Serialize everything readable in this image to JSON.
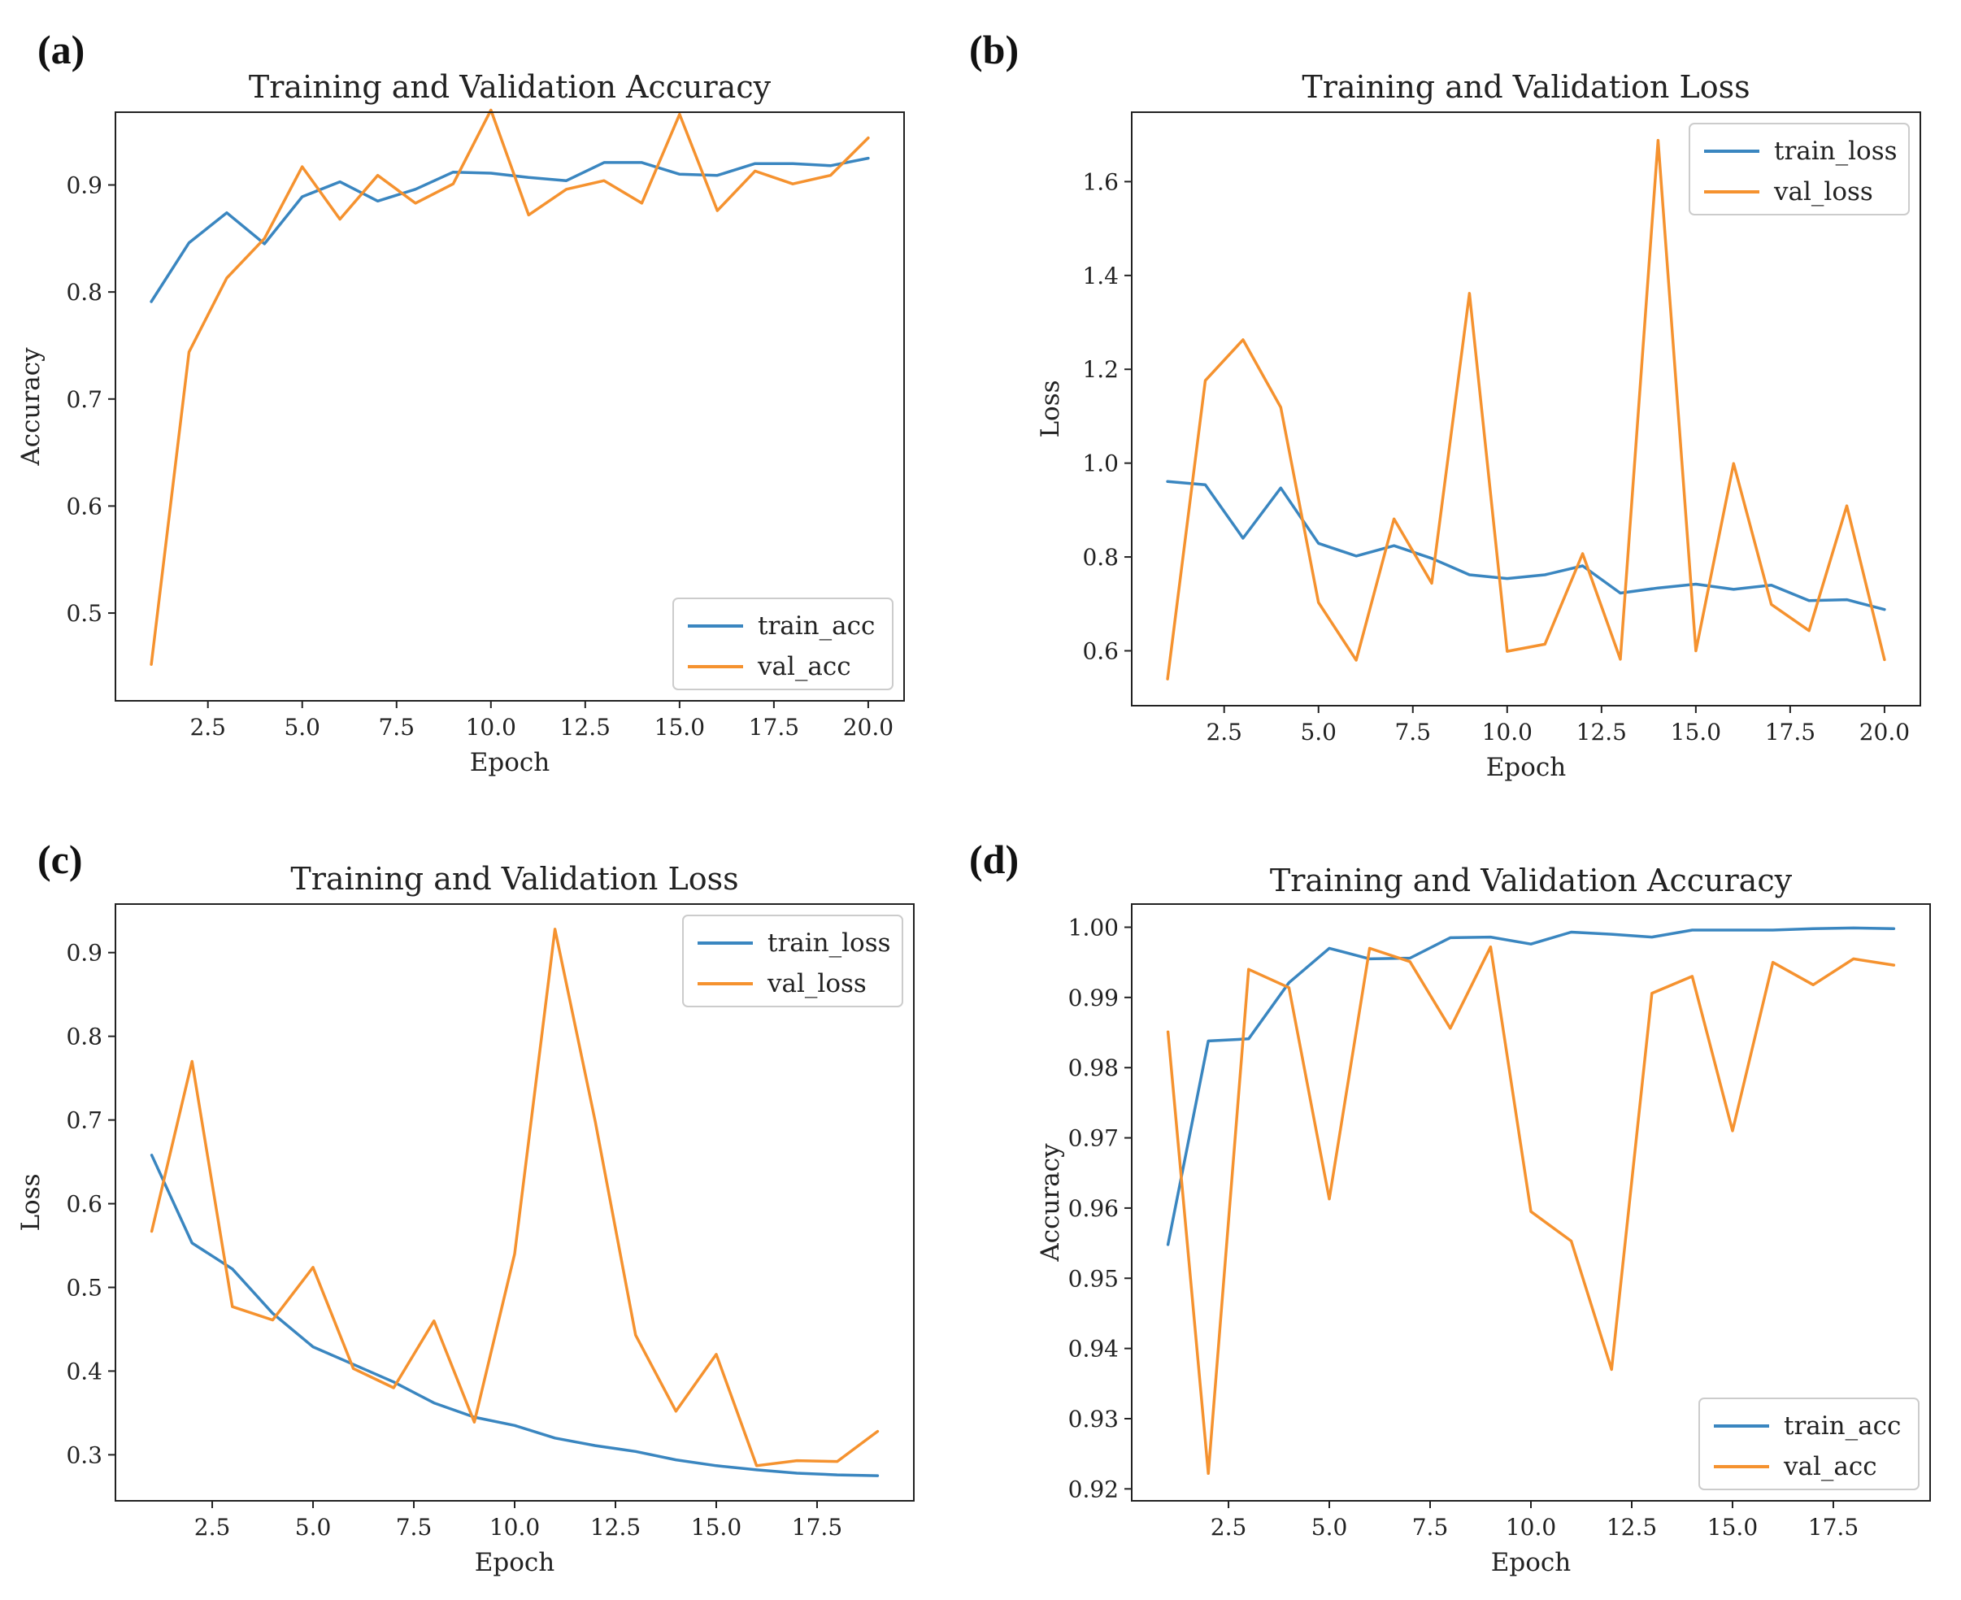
{
  "colors": {
    "train": "#3a86c0",
    "val": "#f5922f"
  },
  "chart_data": [
    {
      "panel": "(a)",
      "type": "line",
      "title": "Training and Validation Accuracy",
      "xlabel": "Epoch",
      "ylabel": "Accuracy",
      "xlim": [
        0.05,
        20.95
      ],
      "ylim": [
        0.418,
        0.968
      ],
      "xticks": [
        2.5,
        5.0,
        7.5,
        10.0,
        12.5,
        15.0,
        17.5,
        20.0
      ],
      "xtick_labels": [
        "2.5",
        "5.0",
        "7.5",
        "10.0",
        "12.5",
        "15.0",
        "17.5",
        "20.0"
      ],
      "yticks": [
        0.5,
        0.6,
        0.7,
        0.8,
        0.9
      ],
      "ytick_labels": [
        "0.5",
        "0.6",
        "0.7",
        "0.8",
        "0.9"
      ],
      "legend_position": "lower-right",
      "grid": false,
      "x": [
        1,
        2,
        3,
        4,
        5,
        6,
        7,
        8,
        9,
        10,
        11,
        12,
        13,
        14,
        15,
        16,
        17,
        18,
        19,
        20
      ],
      "series": [
        {
          "name": "train_acc",
          "color": "#3a86c0",
          "values": [
            0.791,
            0.846,
            0.874,
            0.845,
            0.889,
            0.903,
            0.885,
            0.896,
            0.912,
            0.911,
            0.907,
            0.904,
            0.921,
            0.921,
            0.91,
            0.909,
            0.92,
            0.92,
            0.918,
            0.925
          ]
        },
        {
          "name": "val_acc",
          "color": "#f5922f",
          "values": [
            0.452,
            0.744,
            0.813,
            0.85,
            0.917,
            0.868,
            0.909,
            0.883,
            0.901,
            0.97,
            0.872,
            0.896,
            0.904,
            0.883,
            0.966,
            0.876,
            0.913,
            0.901,
            0.909,
            0.944
          ]
        }
      ]
    },
    {
      "panel": "(b)",
      "type": "line",
      "title": "Training and Validation Loss",
      "xlabel": "Epoch",
      "ylabel": "Loss",
      "xlim": [
        0.05,
        20.95
      ],
      "ylim": [
        0.483,
        1.748
      ],
      "xticks": [
        2.5,
        5.0,
        7.5,
        10.0,
        12.5,
        15.0,
        17.5,
        20.0
      ],
      "xtick_labels": [
        "2.5",
        "5.0",
        "7.5",
        "10.0",
        "12.5",
        "15.0",
        "17.5",
        "20.0"
      ],
      "yticks": [
        0.6,
        0.8,
        1.0,
        1.2,
        1.4,
        1.6
      ],
      "ytick_labels": [
        "0.6",
        "0.8",
        "1.0",
        "1.2",
        "1.4",
        "1.6"
      ],
      "legend_position": "upper-right",
      "grid": false,
      "x": [
        1,
        2,
        3,
        4,
        5,
        6,
        7,
        8,
        9,
        10,
        11,
        12,
        13,
        14,
        15,
        16,
        17,
        18,
        19,
        20
      ],
      "series": [
        {
          "name": "train_loss",
          "color": "#3a86c0",
          "values": [
            0.961,
            0.954,
            0.84,
            0.947,
            0.829,
            0.802,
            0.824,
            0.797,
            0.762,
            0.754,
            0.762,
            0.781,
            0.723,
            0.734,
            0.742,
            0.731,
            0.74,
            0.707,
            0.709,
            0.688
          ]
        },
        {
          "name": "val_loss",
          "color": "#f5922f",
          "values": [
            0.54,
            1.176,
            1.263,
            1.119,
            0.703,
            0.58,
            0.881,
            0.744,
            1.362,
            0.599,
            0.614,
            0.807,
            0.582,
            1.688,
            0.6,
            0.999,
            0.699,
            0.643,
            0.909,
            0.581
          ]
        }
      ]
    },
    {
      "panel": "(c)",
      "type": "line",
      "title": "Training and Validation Loss",
      "xlabel": "Epoch",
      "ylabel": "Loss",
      "xlim": [
        0.1,
        19.9
      ],
      "ylim": [
        0.245,
        0.958
      ],
      "xticks": [
        2.5,
        5.0,
        7.5,
        10.0,
        12.5,
        15.0,
        17.5
      ],
      "xtick_labels": [
        "2.5",
        "5.0",
        "7.5",
        "10.0",
        "12.5",
        "15.0",
        "17.5"
      ],
      "yticks": [
        0.3,
        0.4,
        0.5,
        0.6,
        0.7,
        0.8,
        0.9
      ],
      "ytick_labels": [
        "0.3",
        "0.4",
        "0.5",
        "0.6",
        "0.7",
        "0.8",
        "0.9"
      ],
      "legend_position": "upper-right",
      "grid": false,
      "x": [
        1,
        2,
        3,
        4,
        5,
        6,
        7,
        8,
        9,
        10,
        11,
        12,
        13,
        14,
        15,
        16,
        17,
        18,
        19
      ],
      "series": [
        {
          "name": "train_loss",
          "color": "#3a86c0",
          "values": [
            0.658,
            0.553,
            0.522,
            0.469,
            0.429,
            0.408,
            0.387,
            0.362,
            0.345,
            0.335,
            0.32,
            0.311,
            0.304,
            0.294,
            0.287,
            0.282,
            0.278,
            0.276,
            0.275
          ]
        },
        {
          "name": "val_loss",
          "color": "#f5922f",
          "values": [
            0.567,
            0.77,
            0.477,
            0.461,
            0.524,
            0.403,
            0.38,
            0.46,
            0.339,
            0.54,
            0.928,
            0.698,
            0.443,
            0.352,
            0.42,
            0.287,
            0.293,
            0.292,
            0.328
          ]
        }
      ]
    },
    {
      "panel": "(d)",
      "type": "line",
      "title": "Training and Validation Accuracy",
      "xlabel": "Epoch",
      "ylabel": "Accuracy",
      "xlim": [
        0.1,
        19.9
      ],
      "ylim": [
        0.9183,
        1.0033
      ],
      "xticks": [
        2.5,
        5.0,
        7.5,
        10.0,
        12.5,
        15.0,
        17.5
      ],
      "xtick_labels": [
        "2.5",
        "5.0",
        "7.5",
        "10.0",
        "12.5",
        "15.0",
        "17.5"
      ],
      "yticks": [
        0.92,
        0.93,
        0.94,
        0.95,
        0.96,
        0.97,
        0.98,
        0.99,
        1.0
      ],
      "ytick_labels": [
        "0.92",
        "0.93",
        "0.94",
        "0.95",
        "0.96",
        "0.97",
        "0.98",
        "0.99",
        "1.00"
      ],
      "legend_position": "lower-right",
      "grid": false,
      "x": [
        1,
        2,
        3,
        4,
        5,
        6,
        7,
        8,
        9,
        10,
        11,
        12,
        13,
        14,
        15,
        16,
        17,
        18,
        19
      ],
      "series": [
        {
          "name": "train_acc",
          "color": "#3a86c0",
          "values": [
            0.9548,
            0.9838,
            0.9841,
            0.9921,
            0.997,
            0.9955,
            0.9956,
            0.9985,
            0.9986,
            0.9976,
            0.9993,
            0.999,
            0.9986,
            0.9996,
            0.9996,
            0.9996,
            0.9998,
            0.9999,
            0.9998
          ]
        },
        {
          "name": "val_acc",
          "color": "#f5922f",
          "values": [
            0.9851,
            0.9222,
            0.994,
            0.9914,
            0.9613,
            0.997,
            0.9951,
            0.9856,
            0.9972,
            0.9595,
            0.9553,
            0.937,
            0.9906,
            0.993,
            0.971,
            0.995,
            0.9918,
            0.9955,
            0.9946
          ]
        }
      ]
    }
  ]
}
